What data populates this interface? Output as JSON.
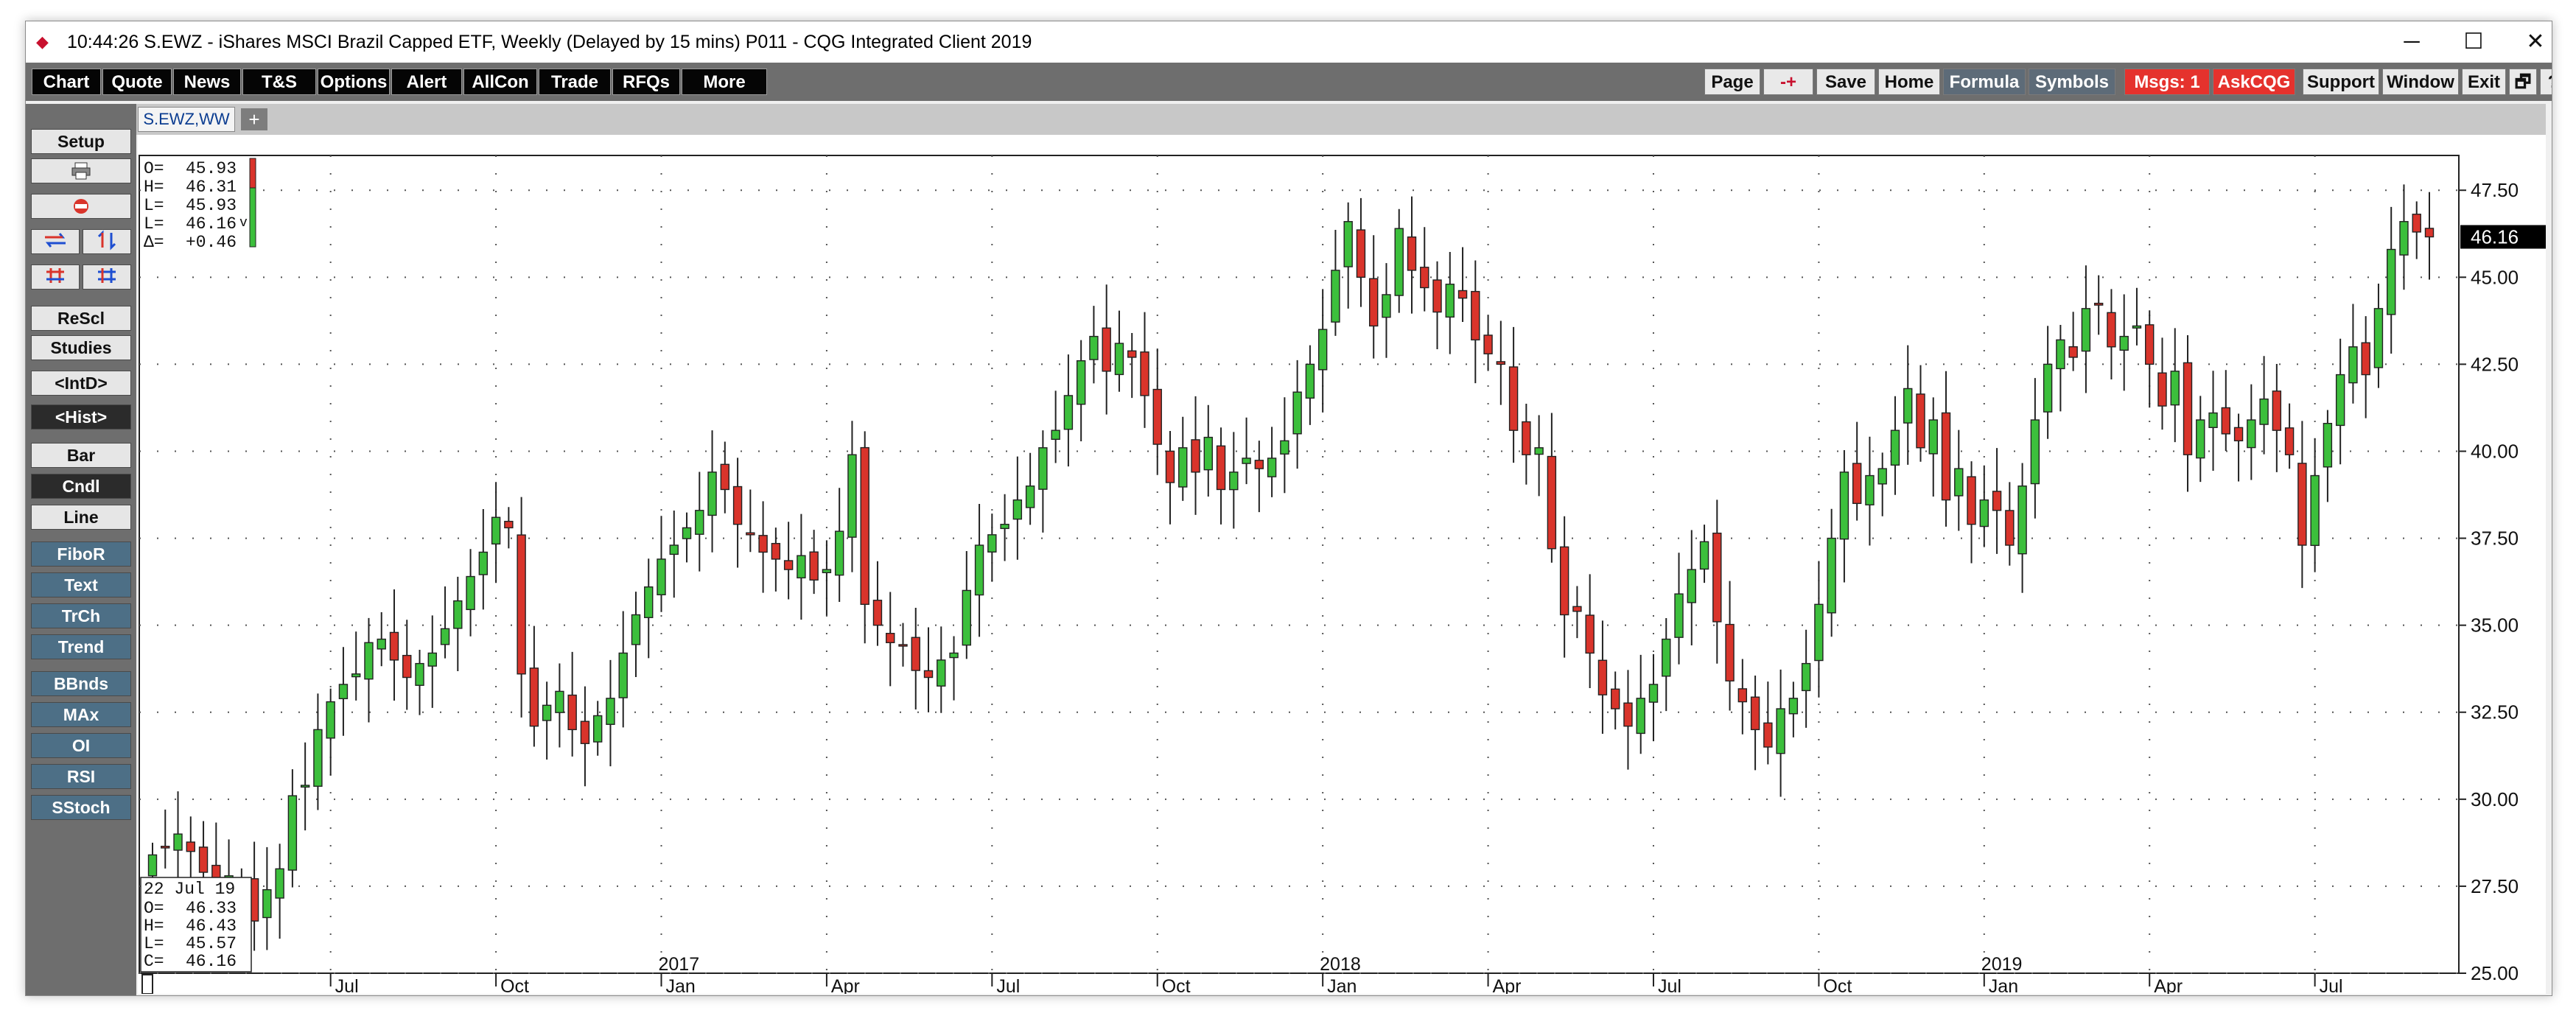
{
  "window": {
    "time": "10:44:26",
    "title": "S.EWZ - iShares MSCI Brazil Capped ETF, Weekly (Delayed by 15 mins)   P011 - CQG Integrated Client 2019",
    "minimize": "─",
    "maximize": "☐",
    "close": "✕"
  },
  "toolbar_left": [
    "Chart",
    "Quote",
    "News",
    "T&S",
    "Options",
    "Alert",
    "AllCon",
    "Trade",
    "RFQs",
    "More"
  ],
  "toolbar_right": {
    "page": "Page",
    "link": "-+",
    "save": "Save",
    "home": "Home",
    "formula": "Formula",
    "symbols": "Symbols",
    "msgs": "Msgs: 1",
    "askcqg": "AskCQG",
    "support": "Support",
    "window": "Window",
    "exit": "Exit",
    "restore": "🗗",
    "help": "?"
  },
  "tab": {
    "label": "S.EWZ,WW",
    "add": "+"
  },
  "sidebar": {
    "setup": "Setup",
    "rescl": "ReScl",
    "studies": "Studies",
    "intd": "<IntD>",
    "hist": "<Hist>",
    "bar": "Bar",
    "cndl": "Cndl",
    "line": "Line",
    "fibor": "FiboR",
    "text": "Text",
    "trch": "TrCh",
    "trend": "Trend",
    "bbnds": "BBnds",
    "max": "MAx",
    "oi": "OI",
    "rsi": "RSI",
    "sstoch": "SStoch"
  },
  "colors": {
    "up": "#3cbf3c",
    "down": "#d9342b",
    "accent_red": "#e5322d",
    "toolbar_bg": "#6e6e6e",
    "button_teal": "#4d6f86"
  },
  "chart_data": {
    "type": "candlestick",
    "symbol": "S.EWZ",
    "period": "Weekly",
    "ylim": [
      25,
      48.5
    ],
    "y_ticks": [
      "25.00",
      "27.50",
      "30.00",
      "32.50",
      "35.00",
      "37.50",
      "40.00",
      "42.50",
      "45.00",
      "47.50"
    ],
    "y_tick_values": [
      25,
      27.5,
      30,
      32.5,
      35,
      37.5,
      40,
      42.5,
      45,
      47.5
    ],
    "month_labels": [
      "Jul",
      "Oct",
      "Jan",
      "Apr",
      "Jul",
      "Oct",
      "Jan",
      "Apr",
      "Jul",
      "Oct",
      "Jan",
      "Apr",
      "Jul"
    ],
    "month_label_index": [
      14,
      27,
      40,
      53,
      66,
      79,
      92,
      105,
      118,
      131,
      144,
      157,
      170
    ],
    "year_labels": [
      "2017",
      "2018",
      "2019"
    ],
    "year_label_index": [
      40,
      92,
      144
    ],
    "last_price": "46.16",
    "top_info": [
      {
        "k": "O=",
        "v": "45.93"
      },
      {
        "k": "H=",
        "v": "46.31"
      },
      {
        "k": "L=",
        "v": "45.93"
      },
      {
        "k": "L=",
        "v": "46.16"
      },
      {
        "k": "Δ=",
        "v": "+0.46"
      }
    ],
    "top_info_mark": "v",
    "bottom_info": {
      "date": "22 Jul 19",
      "rows": [
        {
          "k": "O=",
          "v": "46.33"
        },
        {
          "k": "H=",
          "v": "46.43"
        },
        {
          "k": "L=",
          "v": "45.57"
        },
        {
          "k": "C=",
          "v": "46.16"
        }
      ]
    },
    "weekly_closes": [
      28.4,
      28.6,
      29.0,
      28.5,
      27.9,
      27.7,
      27.8,
      27.5,
      26.5,
      27.4,
      28.0,
      30.1,
      30.4,
      32.0,
      32.8,
      33.3,
      33.6,
      34.5,
      34.6,
      34.0,
      33.5,
      33.9,
      34.2,
      34.9,
      35.7,
      36.4,
      37.1,
      38.1,
      37.8,
      33.6,
      32.1,
      32.7,
      33.1,
      32.0,
      31.6,
      32.4,
      32.9,
      34.2,
      35.3,
      36.1,
      36.9,
      37.3,
      37.8,
      38.3,
      39.4,
      38.9,
      37.9,
      37.6,
      37.1,
      36.9,
      36.6,
      37.0,
      36.3,
      36.6,
      37.7,
      39.9,
      35.6,
      35.0,
      34.5,
      34.4,
      33.7,
      33.5,
      34.0,
      34.2,
      36.0,
      37.3,
      37.6,
      37.9,
      38.6,
      39.0,
      40.1,
      40.6,
      41.6,
      42.6,
      43.3,
      42.3,
      43.1,
      42.7,
      41.6,
      40.2,
      39.1,
      40.1,
      39.4,
      40.4,
      38.9,
      39.4,
      39.8,
      39.5,
      39.8,
      40.3,
      41.7,
      42.5,
      43.5,
      45.2,
      46.6,
      45.0,
      43.6,
      44.5,
      46.4,
      45.2,
      44.7,
      44.0,
      44.8,
      44.4,
      43.2,
      42.8,
      42.5,
      40.6,
      39.9,
      40.1,
      37.2,
      35.3,
      35.4,
      34.2,
      33.0,
      32.6,
      32.1,
      32.9,
      33.3,
      34.6,
      35.9,
      36.6,
      37.4,
      35.1,
      33.4,
      32.8,
      32.0,
      31.5,
      32.6,
      32.9,
      33.9,
      35.6,
      37.5,
      39.4,
      38.5,
      39.3,
      39.5,
      40.6,
      41.8,
      40.1,
      40.9,
      38.6,
      39.5,
      37.9,
      38.6,
      38.3,
      37.3,
      39.0,
      40.9,
      42.5,
      43.2,
      42.7,
      44.1,
      44.2,
      43.0,
      43.3,
      43.6,
      42.5,
      41.3,
      42.3,
      39.9,
      40.9,
      41.1,
      40.5,
      40.3,
      40.9,
      41.5,
      40.6,
      39.9,
      37.3,
      39.3,
      40.8,
      42.2,
      43.0,
      42.2,
      44.1,
      45.8,
      46.6,
      46.3,
      46.16
    ]
  }
}
